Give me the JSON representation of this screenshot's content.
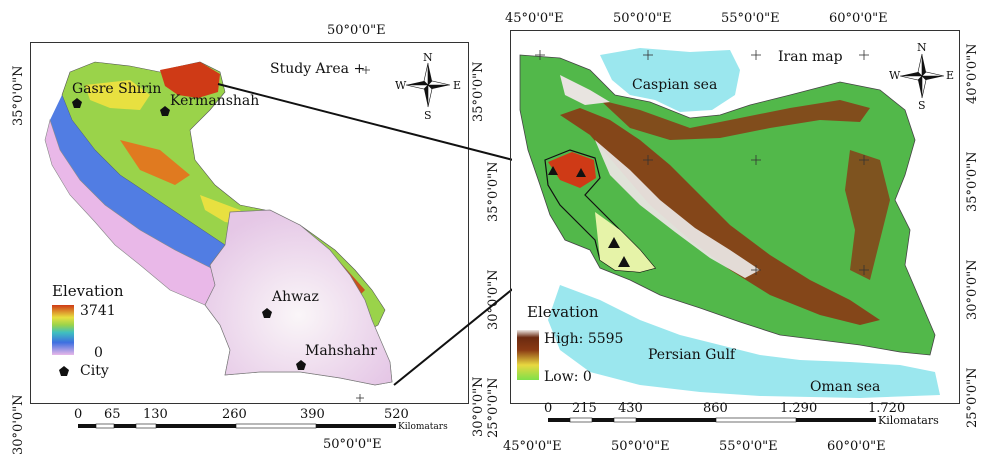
{
  "left_map": {
    "top_lon": "50°0'0\"E",
    "bottom_lon": "50°0'0\"E",
    "lat_left_top": "35°0'0\"N",
    "lat_left_bottom": "30°0'0\"N",
    "lat_right_top": "35°0'0\"N",
    "lat_right_bottom": "30°0'0\"N",
    "title": "Study Area",
    "compass": {
      "n": "N",
      "s": "S",
      "e": "E",
      "w": "W"
    },
    "cities": [
      {
        "name": "Gasre Shirin"
      },
      {
        "name": "Kermanshah"
      },
      {
        "name": "Ahwaz"
      },
      {
        "name": "Mahshahr"
      }
    ],
    "legend": {
      "title": "Elevation",
      "max": "3741",
      "min": "0",
      "city_label": "City"
    },
    "scale": {
      "ticks": [
        "0",
        "65",
        "130",
        "260",
        "390",
        "520"
      ],
      "unit": "Kilomatars"
    }
  },
  "right_map": {
    "top_lons": [
      "45°0'0\"E",
      "50°0'0\"E",
      "55°0'0\"E",
      "60°0'0\"E"
    ],
    "bottom_lons": [
      "45°0'0\"E",
      "50°0'0\"E",
      "55°0'0\"E",
      "60°0'0\"E"
    ],
    "left_lats": [
      "35°0'0\"N",
      "30°0'0\"N",
      "25°0'0\"N"
    ],
    "right_lats": [
      "40°0'0\"N",
      "35°0'0\"N",
      "30°0'0\"N",
      "25°0'0\"N"
    ],
    "title": "Iran map",
    "compass": {
      "n": "N",
      "s": "S",
      "e": "E",
      "w": "W"
    },
    "water": {
      "caspian": "Caspian sea",
      "persian_gulf": "Persian Gulf",
      "oman": "Oman sea"
    },
    "legend": {
      "title": "Elevation",
      "high": "High: 5595",
      "low": "Low: 0"
    },
    "scale": {
      "ticks": [
        "0",
        "215",
        "430",
        "860",
        "1.290",
        "1.720"
      ],
      "unit": "Kilomatars"
    }
  },
  "colors": {
    "frame": "#333333",
    "sea": "#9be7ee",
    "iran_green": "#52b84a",
    "iran_brown": "#8a3a14",
    "iran_white": "#e8e4e0",
    "study_pink": "#e9b8e8",
    "study_blue": "#3e6fe0",
    "study_yellow": "#e8e040",
    "study_red": "#cf3a16",
    "khuzestan_white": "#f5f0f2"
  },
  "icons": [
    "compass-rose-icon",
    "city-pentagon-icon",
    "triangle-marker-icon",
    "grid-cross-icon"
  ]
}
